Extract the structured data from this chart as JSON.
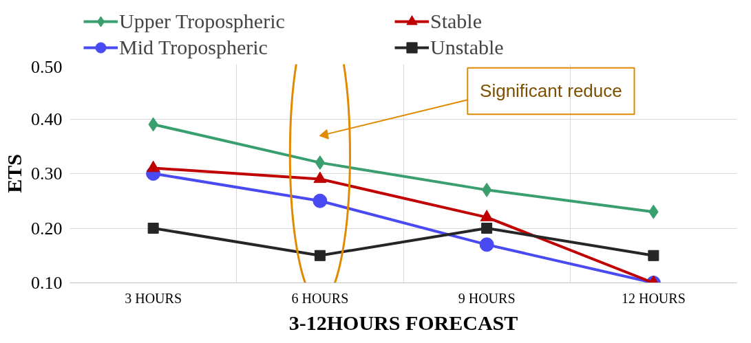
{
  "chart_data": {
    "type": "line",
    "xlabel": "3-12HOURS FORECAST",
    "ylabel": "ETS",
    "categories": [
      "3 HOURS",
      "6 HOURS",
      "9 HOURS",
      "12 HOURS"
    ],
    "series": [
      {
        "name": "Upper Tropospheric",
        "color": "#3a9f6e",
        "marker": "diamond",
        "values": [
          0.39,
          0.32,
          0.27,
          0.23
        ]
      },
      {
        "name": "Mid Tropospheric",
        "color": "#4a4af2",
        "marker": "circle",
        "values": [
          0.3,
          0.25,
          0.17,
          0.1
        ]
      },
      {
        "name": "Stable",
        "color": "#c00000",
        "marker": "triangle",
        "values": [
          0.31,
          0.29,
          0.22,
          0.1
        ]
      },
      {
        "name": "Unstable",
        "color": "#262626",
        "marker": "square",
        "values": [
          0.2,
          0.15,
          0.2,
          0.15
        ]
      }
    ],
    "ylim": [
      0.1,
      0.5
    ],
    "yticks": [
      {
        "value": 0.1,
        "label": "0.10"
      },
      {
        "value": 0.2,
        "label": "0.20"
      },
      {
        "value": 0.3,
        "label": "0.30"
      },
      {
        "value": 0.4,
        "label": "0.40"
      },
      {
        "value": 0.5,
        "label": "0.50"
      }
    ],
    "annotations": [
      "Significant reduce"
    ],
    "grid": true,
    "legend": "top",
    "line_style": "solid"
  }
}
